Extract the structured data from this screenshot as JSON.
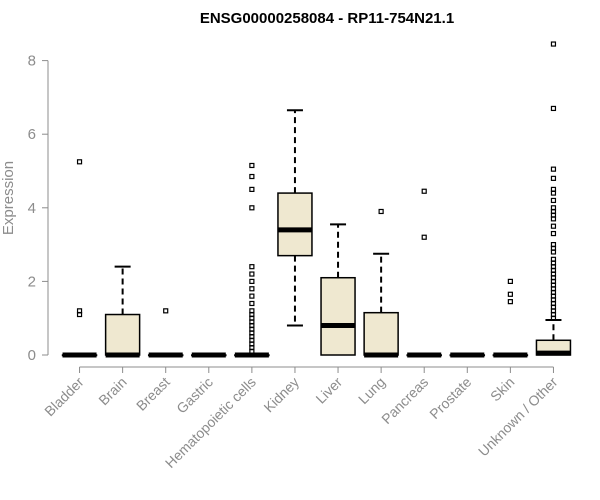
{
  "chart_data": {
    "type": "box",
    "title": "ENSG00000258084 - RP11-754N21.1",
    "xlabel": "",
    "ylabel": "Expression",
    "ylim": [
      -0.3,
      8.6
    ],
    "yticks": [
      0,
      2,
      4,
      6,
      8
    ],
    "grid": false,
    "legend": "none",
    "box_fill": "#efe8d0",
    "categories": [
      "Bladder",
      "Brain",
      "Breast",
      "Gastric",
      "Hematopoietic cells",
      "Kidney",
      "Liver",
      "Lung",
      "Pancreas",
      "Prostate",
      "Skin",
      "Unknown / Other"
    ],
    "boxes": [
      {
        "category": "Bladder",
        "whisker_low": 0,
        "q1": 0,
        "median": 0,
        "q3": 0,
        "whisker_high": 0,
        "outliers": [
          1.1,
          1.2,
          5.25
        ]
      },
      {
        "category": "Brain",
        "whisker_low": 0,
        "q1": 0,
        "median": 0,
        "q3": 1.1,
        "whisker_high": 2.4,
        "outliers": []
      },
      {
        "category": "Breast",
        "whisker_low": 0,
        "q1": 0,
        "median": 0,
        "q3": 0,
        "whisker_high": 0,
        "outliers": [
          1.2
        ]
      },
      {
        "category": "Gastric",
        "whisker_low": 0,
        "q1": 0,
        "median": 0,
        "q3": 0,
        "whisker_high": 0,
        "outliers": []
      },
      {
        "category": "Hematopoietic cells",
        "whisker_low": 0,
        "q1": 0,
        "median": 0,
        "q3": 0,
        "whisker_high": 0,
        "outliers": [
          0.1,
          0.2,
          0.3,
          0.4,
          0.5,
          0.6,
          0.7,
          0.8,
          0.9,
          1.0,
          1.1,
          1.2,
          1.4,
          1.6,
          1.8,
          2.0,
          2.2,
          2.4,
          4.0,
          4.5,
          4.85,
          5.15
        ]
      },
      {
        "category": "Kidney",
        "whisker_low": 0.8,
        "q1": 2.7,
        "median": 3.4,
        "q3": 4.4,
        "whisker_high": 6.65,
        "outliers": []
      },
      {
        "category": "Liver",
        "whisker_low": 0,
        "q1": 0,
        "median": 0.8,
        "q3": 2.1,
        "whisker_high": 3.55,
        "outliers": []
      },
      {
        "category": "Lung",
        "whisker_low": 0,
        "q1": 0,
        "median": 0,
        "q3": 1.15,
        "whisker_high": 2.75,
        "outliers": [
          3.9
        ]
      },
      {
        "category": "Pancreas",
        "whisker_low": 0,
        "q1": 0,
        "median": 0,
        "q3": 0,
        "whisker_high": 0,
        "outliers": [
          3.2,
          4.45
        ]
      },
      {
        "category": "Prostate",
        "whisker_low": 0,
        "q1": 0,
        "median": 0,
        "q3": 0,
        "whisker_high": 0,
        "outliers": []
      },
      {
        "category": "Skin",
        "whisker_low": 0,
        "q1": 0,
        "median": 0,
        "q3": 0,
        "whisker_high": 0,
        "outliers": [
          1.45,
          1.65,
          2.0
        ]
      },
      {
        "category": "Unknown / Other",
        "whisker_low": 0,
        "q1": 0,
        "median": 0.05,
        "q3": 0.4,
        "whisker_high": 0.95,
        "outliers": [
          1.0,
          1.1,
          1.2,
          1.3,
          1.4,
          1.5,
          1.6,
          1.7,
          1.8,
          1.9,
          2.0,
          2.1,
          2.2,
          2.3,
          2.4,
          2.5,
          2.6,
          2.8,
          2.9,
          3.0,
          3.3,
          3.5,
          3.7,
          3.8,
          3.9,
          4.0,
          4.2,
          4.4,
          4.5,
          4.8,
          5.05,
          6.7,
          8.45
        ]
      }
    ]
  }
}
